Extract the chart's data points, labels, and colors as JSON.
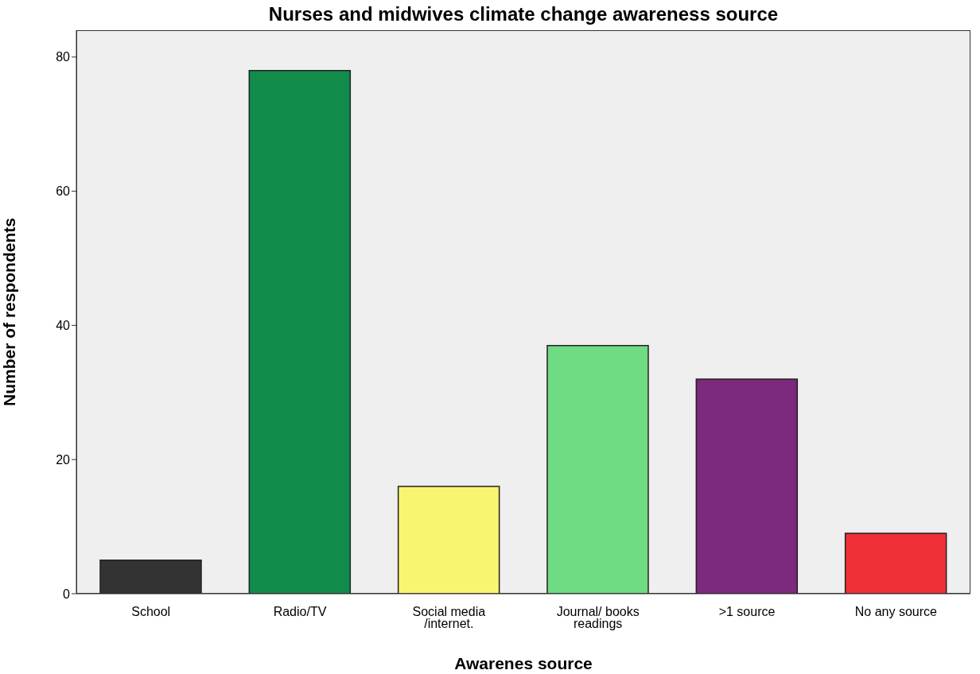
{
  "chart_data": {
    "type": "bar",
    "title": "Nurses and midwives  climate change awareness source",
    "xlabel": "Awarenes source",
    "ylabel": "Number of respondents",
    "categories": [
      "School",
      "Radio/TV",
      "Social media /internet.",
      "Journal/ books readings",
      ">1 source",
      "No any source"
    ],
    "values": [
      5,
      78,
      16,
      37,
      32,
      9
    ],
    "colors": [
      "#333333",
      "#118c4a",
      "#f9f571",
      "#6fdb82",
      "#7b2a7c",
      "#ef3036"
    ],
    "ylim": [
      0,
      84
    ],
    "yticks": [
      0,
      20,
      40,
      60,
      80
    ]
  }
}
